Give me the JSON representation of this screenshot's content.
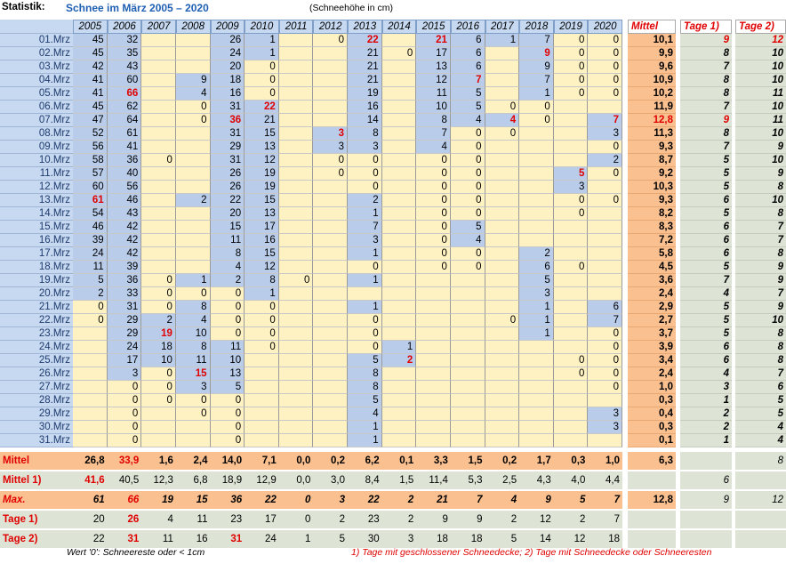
{
  "header": {
    "label": "Statistik:",
    "title": "Schnee im März 2005 – 2020",
    "unit": "(Schneehöhe in cm)"
  },
  "table": {
    "columns": [
      "2005",
      "2006",
      "2007",
      "2008",
      "2009",
      "2010",
      "2011",
      "2012",
      "2013",
      "2014",
      "2015",
      "2016",
      "2017",
      "2018",
      "2019",
      "2020"
    ],
    "extra_columns": [
      "Mittel",
      "Tage 1)",
      "Tage 2)"
    ],
    "rows": [
      {
        "date": "01.Mrz",
        "values": [
          45,
          32,
          null,
          null,
          26,
          1,
          null,
          0,
          22,
          null,
          21,
          6,
          1,
          7,
          0,
          0
        ],
        "mittel": "10,1",
        "tage1": 9,
        "tage2": 12
      },
      {
        "date": "02.Mrz",
        "values": [
          45,
          35,
          null,
          null,
          24,
          1,
          null,
          null,
          21,
          0,
          17,
          6,
          null,
          9,
          0,
          0
        ],
        "mittel": "9,9",
        "tage1": 8,
        "tage2": 10
      },
      {
        "date": "03.Mrz",
        "values": [
          42,
          43,
          null,
          null,
          20,
          0,
          null,
          null,
          21,
          null,
          13,
          6,
          null,
          9,
          0,
          0
        ],
        "mittel": "9,6",
        "tage1": 7,
        "tage2": 10
      },
      {
        "date": "04.Mrz",
        "values": [
          41,
          60,
          null,
          9,
          18,
          0,
          null,
          null,
          21,
          null,
          12,
          7,
          null,
          7,
          0,
          0
        ],
        "mittel": "10,9",
        "tage1": 8,
        "tage2": 10
      },
      {
        "date": "05.Mrz",
        "values": [
          41,
          66,
          null,
          4,
          16,
          0,
          null,
          null,
          19,
          null,
          11,
          5,
          null,
          1,
          0,
          0
        ],
        "mittel": "10,2",
        "tage1": 8,
        "tage2": 11
      },
      {
        "date": "06.Mrz",
        "values": [
          45,
          62,
          null,
          0,
          31,
          22,
          null,
          null,
          16,
          null,
          10,
          5,
          0,
          0,
          null,
          null
        ],
        "mittel": "11,9",
        "tage1": 7,
        "tage2": 10
      },
      {
        "date": "07.Mrz",
        "values": [
          47,
          64,
          null,
          0,
          36,
          21,
          null,
          null,
          14,
          null,
          8,
          4,
          4,
          0,
          null,
          7
        ],
        "mittel": "12,8",
        "tage1": 9,
        "tage2": 11
      },
      {
        "date": "08.Mrz",
        "values": [
          52,
          61,
          null,
          null,
          31,
          15,
          null,
          3,
          8,
          null,
          7,
          0,
          0,
          null,
          null,
          3
        ],
        "mittel": "11,3",
        "tage1": 8,
        "tage2": 10
      },
      {
        "date": "09.Mrz",
        "values": [
          56,
          41,
          null,
          null,
          29,
          13,
          null,
          3,
          3,
          null,
          4,
          0,
          null,
          null,
          null,
          0
        ],
        "mittel": "9,3",
        "tage1": 7,
        "tage2": 9
      },
      {
        "date": "10.Mrz",
        "values": [
          58,
          36,
          0,
          null,
          31,
          12,
          null,
          0,
          0,
          null,
          0,
          0,
          null,
          null,
          null,
          2
        ],
        "mittel": "8,7",
        "tage1": 5,
        "tage2": 10
      },
      {
        "date": "11.Mrz",
        "values": [
          57,
          40,
          null,
          null,
          26,
          19,
          null,
          0,
          0,
          null,
          0,
          0,
          null,
          null,
          5,
          0
        ],
        "mittel": "9,2",
        "tage1": 5,
        "tage2": 9
      },
      {
        "date": "12.Mrz",
        "values": [
          60,
          56,
          null,
          null,
          26,
          19,
          null,
          null,
          0,
          null,
          0,
          0,
          null,
          null,
          3,
          null
        ],
        "mittel": "10,3",
        "tage1": 5,
        "tage2": 8
      },
      {
        "date": "13.Mrz",
        "values": [
          61,
          46,
          null,
          2,
          22,
          15,
          null,
          null,
          2,
          null,
          0,
          0,
          null,
          null,
          0,
          0
        ],
        "mittel": "9,3",
        "tage1": 6,
        "tage2": 10
      },
      {
        "date": "14.Mrz",
        "values": [
          54,
          43,
          null,
          null,
          20,
          13,
          null,
          null,
          1,
          null,
          0,
          0,
          null,
          null,
          0,
          null
        ],
        "mittel": "8,2",
        "tage1": 5,
        "tage2": 8
      },
      {
        "date": "15.Mrz",
        "values": [
          46,
          42,
          null,
          null,
          15,
          17,
          null,
          null,
          7,
          null,
          0,
          5,
          null,
          null,
          null,
          null
        ],
        "mittel": "8,3",
        "tage1": 6,
        "tage2": 7
      },
      {
        "date": "16.Mrz",
        "values": [
          39,
          42,
          null,
          null,
          11,
          16,
          null,
          null,
          3,
          null,
          0,
          4,
          null,
          null,
          null,
          null
        ],
        "mittel": "7,2",
        "tage1": 6,
        "tage2": 7
      },
      {
        "date": "17.Mrz",
        "values": [
          24,
          42,
          null,
          null,
          8,
          15,
          null,
          null,
          1,
          null,
          0,
          0,
          null,
          2,
          null,
          null
        ],
        "mittel": "5,8",
        "tage1": 6,
        "tage2": 8
      },
      {
        "date": "18.Mrz",
        "values": [
          11,
          39,
          null,
          null,
          4,
          12,
          null,
          null,
          0,
          null,
          0,
          0,
          null,
          6,
          0,
          null
        ],
        "mittel": "4,5",
        "tage1": 5,
        "tage2": 9
      },
      {
        "date": "19.Mrz",
        "values": [
          5,
          36,
          0,
          1,
          2,
          8,
          0,
          null,
          1,
          null,
          null,
          null,
          null,
          5,
          null,
          null
        ],
        "mittel": "3,6",
        "tage1": 7,
        "tage2": 9
      },
      {
        "date": "20.Mrz",
        "values": [
          2,
          33,
          0,
          0,
          0,
          1,
          null,
          null,
          null,
          null,
          null,
          null,
          null,
          3,
          null,
          null
        ],
        "mittel": "2,4",
        "tage1": 4,
        "tage2": 7
      },
      {
        "date": "21.Mrz",
        "values": [
          0,
          31,
          0,
          8,
          0,
          0,
          null,
          null,
          1,
          null,
          null,
          null,
          null,
          1,
          null,
          6
        ],
        "mittel": "2,9",
        "tage1": 5,
        "tage2": 9
      },
      {
        "date": "22.Mrz",
        "values": [
          0,
          29,
          2,
          4,
          0,
          0,
          null,
          null,
          0,
          null,
          null,
          null,
          0,
          1,
          null,
          7
        ],
        "mittel": "2,7",
        "tage1": 5,
        "tage2": 10
      },
      {
        "date": "23.Mrz",
        "values": [
          null,
          29,
          19,
          10,
          0,
          0,
          null,
          null,
          0,
          null,
          null,
          null,
          null,
          1,
          null,
          0
        ],
        "mittel": "3,7",
        "tage1": 5,
        "tage2": 8
      },
      {
        "date": "24.Mrz",
        "values": [
          null,
          24,
          18,
          8,
          11,
          0,
          null,
          null,
          0,
          1,
          null,
          null,
          null,
          null,
          null,
          0
        ],
        "mittel": "3,9",
        "tage1": 6,
        "tage2": 8
      },
      {
        "date": "25.Mrz",
        "values": [
          null,
          17,
          10,
          11,
          10,
          null,
          null,
          null,
          5,
          2,
          null,
          null,
          null,
          null,
          0,
          0
        ],
        "mittel": "3,4",
        "tage1": 6,
        "tage2": 8
      },
      {
        "date": "26.Mrz",
        "values": [
          null,
          3,
          0,
          15,
          13,
          null,
          null,
          null,
          8,
          null,
          null,
          null,
          null,
          null,
          0,
          0
        ],
        "mittel": "2,4",
        "tage1": 4,
        "tage2": 7
      },
      {
        "date": "27.Mrz",
        "values": [
          null,
          0,
          0,
          3,
          5,
          null,
          null,
          null,
          8,
          null,
          null,
          null,
          null,
          null,
          null,
          0
        ],
        "mittel": "1,0",
        "tage1": 3,
        "tage2": 6
      },
      {
        "date": "28.Mrz",
        "values": [
          null,
          0,
          0,
          0,
          0,
          null,
          null,
          null,
          5,
          null,
          null,
          null,
          null,
          null,
          null,
          null
        ],
        "mittel": "0,3",
        "tage1": 1,
        "tage2": 5
      },
      {
        "date": "29.Mrz",
        "values": [
          null,
          0,
          null,
          0,
          0,
          null,
          null,
          null,
          4,
          null,
          null,
          null,
          null,
          null,
          null,
          3
        ],
        "mittel": "0,4",
        "tage1": 2,
        "tage2": 5
      },
      {
        "date": "30.Mrz",
        "values": [
          null,
          0,
          null,
          null,
          0,
          null,
          null,
          null,
          1,
          null,
          null,
          null,
          null,
          null,
          null,
          3
        ],
        "mittel": "0,3",
        "tage1": 2,
        "tage2": 4
      },
      {
        "date": "31.Mrz",
        "values": [
          null,
          0,
          null,
          null,
          0,
          null,
          null,
          null,
          1,
          null,
          null,
          null,
          null,
          null,
          null,
          null
        ],
        "mittel": "0,1",
        "tage1": 1,
        "tage2": 4
      }
    ],
    "summary": [
      {
        "label": "Mittel",
        "values": [
          "26,8",
          "33,9",
          "1,6",
          "2,4",
          "14,0",
          "7,1",
          "0,0",
          "0,2",
          "6,2",
          "0,1",
          "3,3",
          "1,5",
          "0,2",
          "1,7",
          "0,3",
          "1,0"
        ],
        "mittel": "6,3",
        "tage1": null,
        "tage2": 8
      },
      {
        "label": "Mittel 1)",
        "values": [
          "41,6",
          "40,5",
          "12,3",
          "6,8",
          "18,9",
          "12,9",
          "0,0",
          "3,0",
          "8,4",
          "1,5",
          "11,4",
          "5,3",
          "2,5",
          "4,3",
          "4,0",
          "4,4"
        ],
        "mittel": null,
        "tage1": 6,
        "tage2": null
      },
      {
        "label": "Max.",
        "values": [
          61,
          66,
          19,
          15,
          36,
          22,
          0,
          3,
          22,
          2,
          21,
          7,
          4,
          9,
          5,
          7
        ],
        "mittel": "12,8",
        "tage1": 9,
        "tage2": 12
      },
      {
        "label": "Tage 1)",
        "values": [
          20,
          26,
          4,
          11,
          23,
          17,
          0,
          2,
          23,
          2,
          9,
          9,
          2,
          12,
          2,
          7
        ],
        "mittel": null,
        "tage1": null,
        "tage2": null
      },
      {
        "label": "Tage 2)",
        "values": [
          22,
          31,
          11,
          16,
          31,
          24,
          1,
          5,
          30,
          3,
          18,
          18,
          5,
          14,
          12,
          18
        ],
        "mittel": null,
        "tage1": null,
        "tage2": null
      }
    ]
  },
  "highlighted": [
    "table.rows.0.values.8",
    "table.rows.0.values.10",
    "table.rows.0.tage1",
    "table.rows.0.tage2",
    "table.rows.1.values.13",
    "table.rows.3.values.11",
    "table.rows.4.values.1",
    "table.rows.5.values.5",
    "table.rows.6.values.4",
    "table.rows.6.values.12",
    "table.rows.6.values.15",
    "table.rows.6.mittel",
    "table.rows.6.tage1",
    "table.rows.7.values.7",
    "table.rows.10.values.14",
    "table.rows.12.values.0",
    "table.rows.22.values.2",
    "table.rows.24.values.9",
    "table.rows.25.values.3",
    "table.summary.0.values.1",
    "table.summary.1.values.0",
    "table.summary.2.values.1",
    "table.summary.3.values.1",
    "table.summary.4.values.1",
    "table.summary.4.values.4"
  ],
  "footnotes": {
    "left": "Wert '0': Schneereste oder < 1cm",
    "right": "1) Tage mit geschlossener Schneedecke;  2) Tage mit Schneedecke oder Schneeresten"
  }
}
